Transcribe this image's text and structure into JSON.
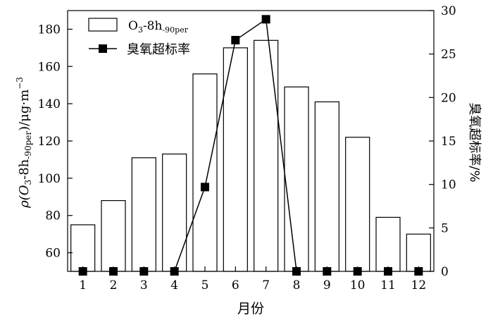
{
  "chart_data": {
    "type": "bar+line",
    "categories": [
      "1",
      "2",
      "3",
      "4",
      "5",
      "6",
      "7",
      "8",
      "9",
      "10",
      "11",
      "12"
    ],
    "xlabel": "月份",
    "ylabel_left": {
      "rho": "ρ(O",
      "sub1": "3",
      "mid": "-8h",
      "sub2": "-90per",
      "tail": ")/μg·m",
      "sup": "−3"
    },
    "ylabel_right": "臭氧超标率/%",
    "ylim_left": [
      50,
      190
    ],
    "yticks_left": [
      60,
      80,
      100,
      120,
      140,
      160,
      180
    ],
    "ylim_right": [
      0,
      30
    ],
    "yticks_right": [
      0,
      5,
      10,
      15,
      20,
      25,
      30
    ],
    "legend_position": "top-left",
    "series": [
      {
        "name": "O3-8h-90per",
        "legend": {
          "main": "O",
          "sub": "3",
          "rest": "-8h",
          "sub2": "-90per"
        },
        "type": "bar",
        "axis": "left",
        "values": [
          75,
          88,
          111,
          113,
          156,
          170,
          174,
          149,
          141,
          122,
          79,
          70
        ]
      },
      {
        "name": "臭氧超标率",
        "type": "line",
        "axis": "right",
        "values": [
          0,
          0,
          0,
          0,
          9.7,
          26.6,
          29.0,
          0,
          0,
          0,
          0,
          0
        ]
      }
    ]
  }
}
